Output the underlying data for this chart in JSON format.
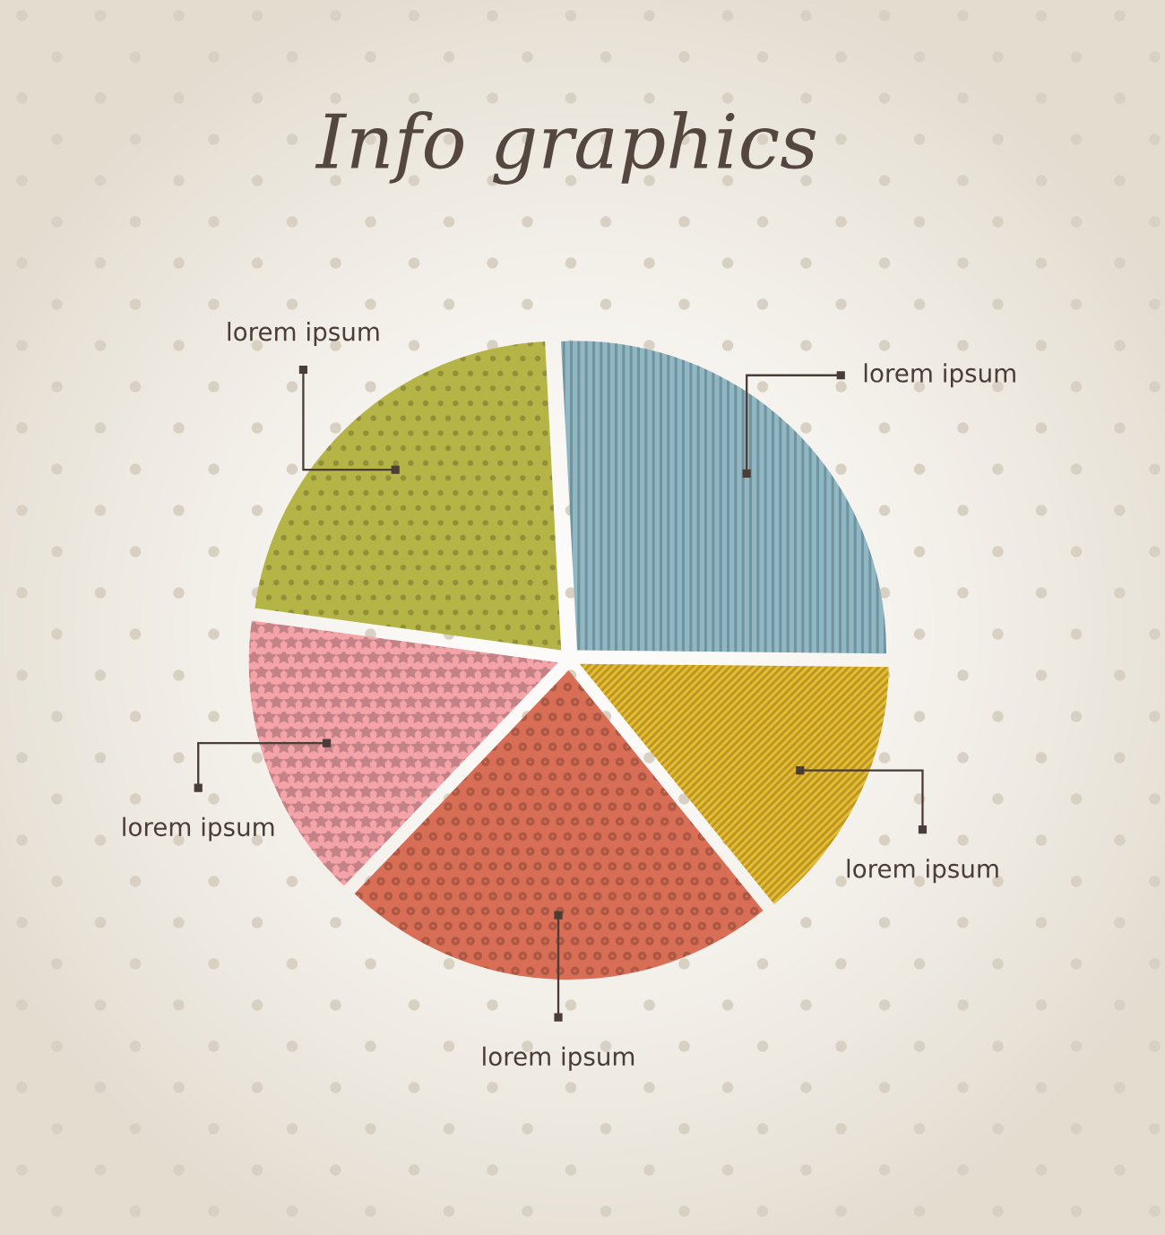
{
  "chart_data": {
    "type": "pie",
    "title": "Info graphics",
    "categories": [
      "lorem ipsum",
      "lorem ipsum",
      "lorem ipsum",
      "lorem ipsum",
      "lorem ipsum"
    ],
    "values": [
      26,
      14,
      23,
      15,
      22
    ],
    "colors": [
      "#8fb8c4",
      "#e8bd30",
      "#d86e55",
      "#f4a3a8",
      "#b5b446"
    ]
  }
}
